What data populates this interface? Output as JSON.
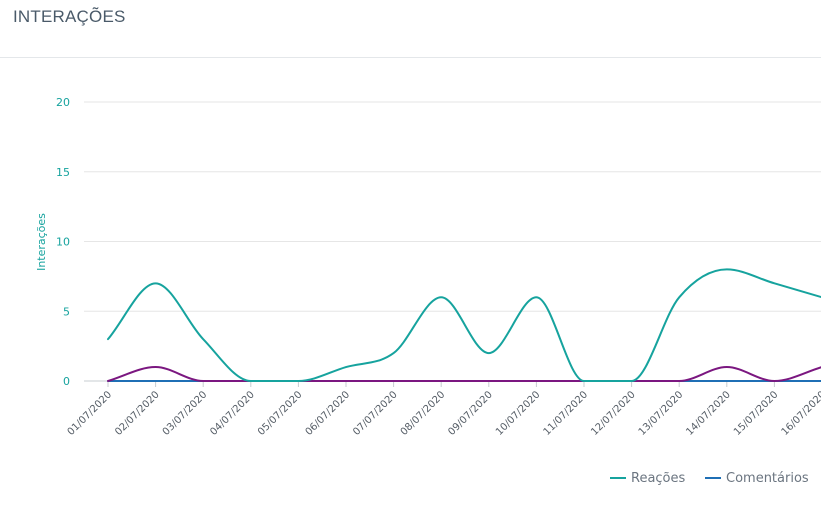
{
  "panel": {
    "title": "INTERAÇÕES"
  },
  "chart_data": {
    "type": "line",
    "title": "",
    "xlabel": "",
    "ylabel": "Interações",
    "ylim": [
      0,
      20
    ],
    "yticks": [
      0,
      5,
      10,
      15,
      20
    ],
    "grid": true,
    "legend_position": "bottom-right",
    "categories": [
      "01/07/2020",
      "02/07/2020",
      "03/07/2020",
      "04/07/2020",
      "05/07/2020",
      "06/07/2020",
      "07/07/2020",
      "08/07/2020",
      "09/07/2020",
      "10/07/2020",
      "11/07/2020",
      "12/07/2020",
      "13/07/2020",
      "14/07/2020",
      "15/07/2020",
      "16/07/2020"
    ],
    "series": [
      {
        "name": "Reações",
        "color": "#16a39e",
        "in_legend": true,
        "values": [
          3,
          7,
          3,
          0,
          0,
          1,
          2,
          6,
          2,
          6,
          0,
          0,
          6,
          8,
          7,
          6
        ]
      },
      {
        "name": "Comentários",
        "color": "#1f6fb5",
        "in_legend": true,
        "values": [
          0,
          0,
          0,
          0,
          0,
          0,
          0,
          0,
          0,
          0,
          0,
          0,
          0,
          0,
          0,
          0
        ]
      },
      {
        "color": "#7b1780",
        "in_legend": false,
        "values": [
          0,
          1,
          0,
          0,
          0,
          0,
          0,
          0,
          0,
          0,
          0,
          0,
          0,
          1,
          0,
          1
        ]
      }
    ]
  }
}
